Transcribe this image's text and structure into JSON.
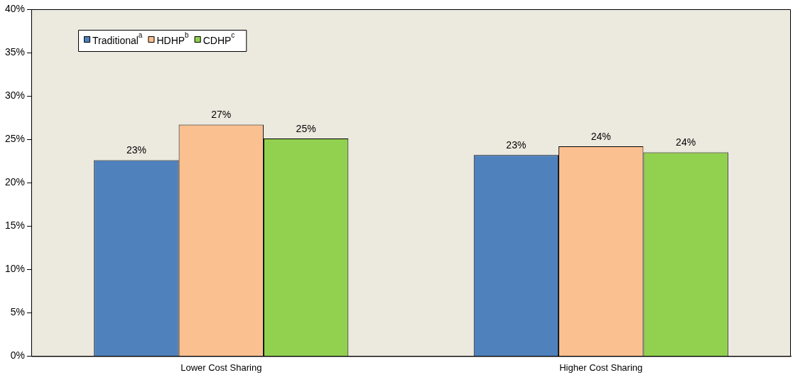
{
  "chart_data": {
    "type": "bar",
    "categories": [
      "Lower Cost Sharing",
      "Higher Cost Sharing"
    ],
    "series": [
      {
        "name": "Traditional$^{a}$",
        "color": "#4f81bd",
        "values": [
          22.6,
          23.2
        ],
        "value_labels": [
          "23%",
          "23%"
        ]
      },
      {
        "name": "HDHP$^{b}$",
        "color": "#fac090",
        "values": [
          26.7,
          24.2
        ],
        "value_labels": [
          "27%",
          "24%"
        ]
      },
      {
        "name": "CDHP$^{c}$",
        "color": "#92d050",
        "values": [
          25.1,
          23.5
        ],
        "value_labels": [
          "25%",
          "24%"
        ]
      }
    ],
    "ylim": [
      0,
      40
    ],
    "yticks": [
      {
        "value": 0,
        "label": "0%"
      },
      {
        "value": 5,
        "label": "5%"
      },
      {
        "value": 10,
        "label": "10%"
      },
      {
        "value": 15,
        "label": "15%"
      },
      {
        "value": 20,
        "label": "20%"
      },
      {
        "value": 25,
        "label": "25%"
      },
      {
        "value": 30,
        "label": "30%"
      },
      {
        "value": 35,
        "label": "35%"
      },
      {
        "value": 40,
        "label": "40%"
      }
    ],
    "grid": false,
    "legend": "top left"
  }
}
